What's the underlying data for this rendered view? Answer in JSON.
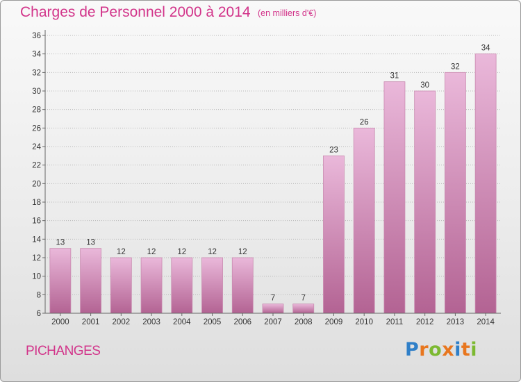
{
  "header": {
    "title": "Charges de Personnel 2000 à 2014",
    "subtitle": "(en milliers d'€)"
  },
  "footer": {
    "commune": "PICHANGES",
    "logo_letters": [
      {
        "char": "P",
        "color": "#2f7fc8"
      },
      {
        "char": "r",
        "color": "#e8761e"
      },
      {
        "char": "o",
        "color": "#7cb931"
      },
      {
        "char": "x",
        "color": "#e8761e"
      },
      {
        "char": "i",
        "color": "#2f7fc8"
      },
      {
        "char": "t",
        "color": "#e8761e"
      },
      {
        "char": "i",
        "color": "#7cb931"
      }
    ]
  },
  "colors": {
    "bar_top": "#eab8da",
    "bar_bottom": "#b36393",
    "bar_edge": "#c98bb0",
    "title": "#d2348a",
    "text": "#333333"
  },
  "chart_data": {
    "type": "bar",
    "title": "Charges de Personnel 2000 à 2014",
    "subtitle": "(en milliers d'€)",
    "categories": [
      "2000",
      "2001",
      "2002",
      "2003",
      "2004",
      "2005",
      "2006",
      "2007",
      "2008",
      "2009",
      "2010",
      "2011",
      "2012",
      "2013",
      "2014"
    ],
    "values": [
      13,
      13,
      12,
      12,
      12,
      12,
      12,
      7,
      7,
      23,
      26,
      31,
      30,
      32,
      34
    ],
    "ylim": [
      6,
      36
    ],
    "yticks": [
      6,
      8,
      10,
      12,
      14,
      16,
      18,
      20,
      22,
      24,
      26,
      28,
      30,
      32,
      34,
      36
    ],
    "grid": true,
    "legend": "none"
  }
}
